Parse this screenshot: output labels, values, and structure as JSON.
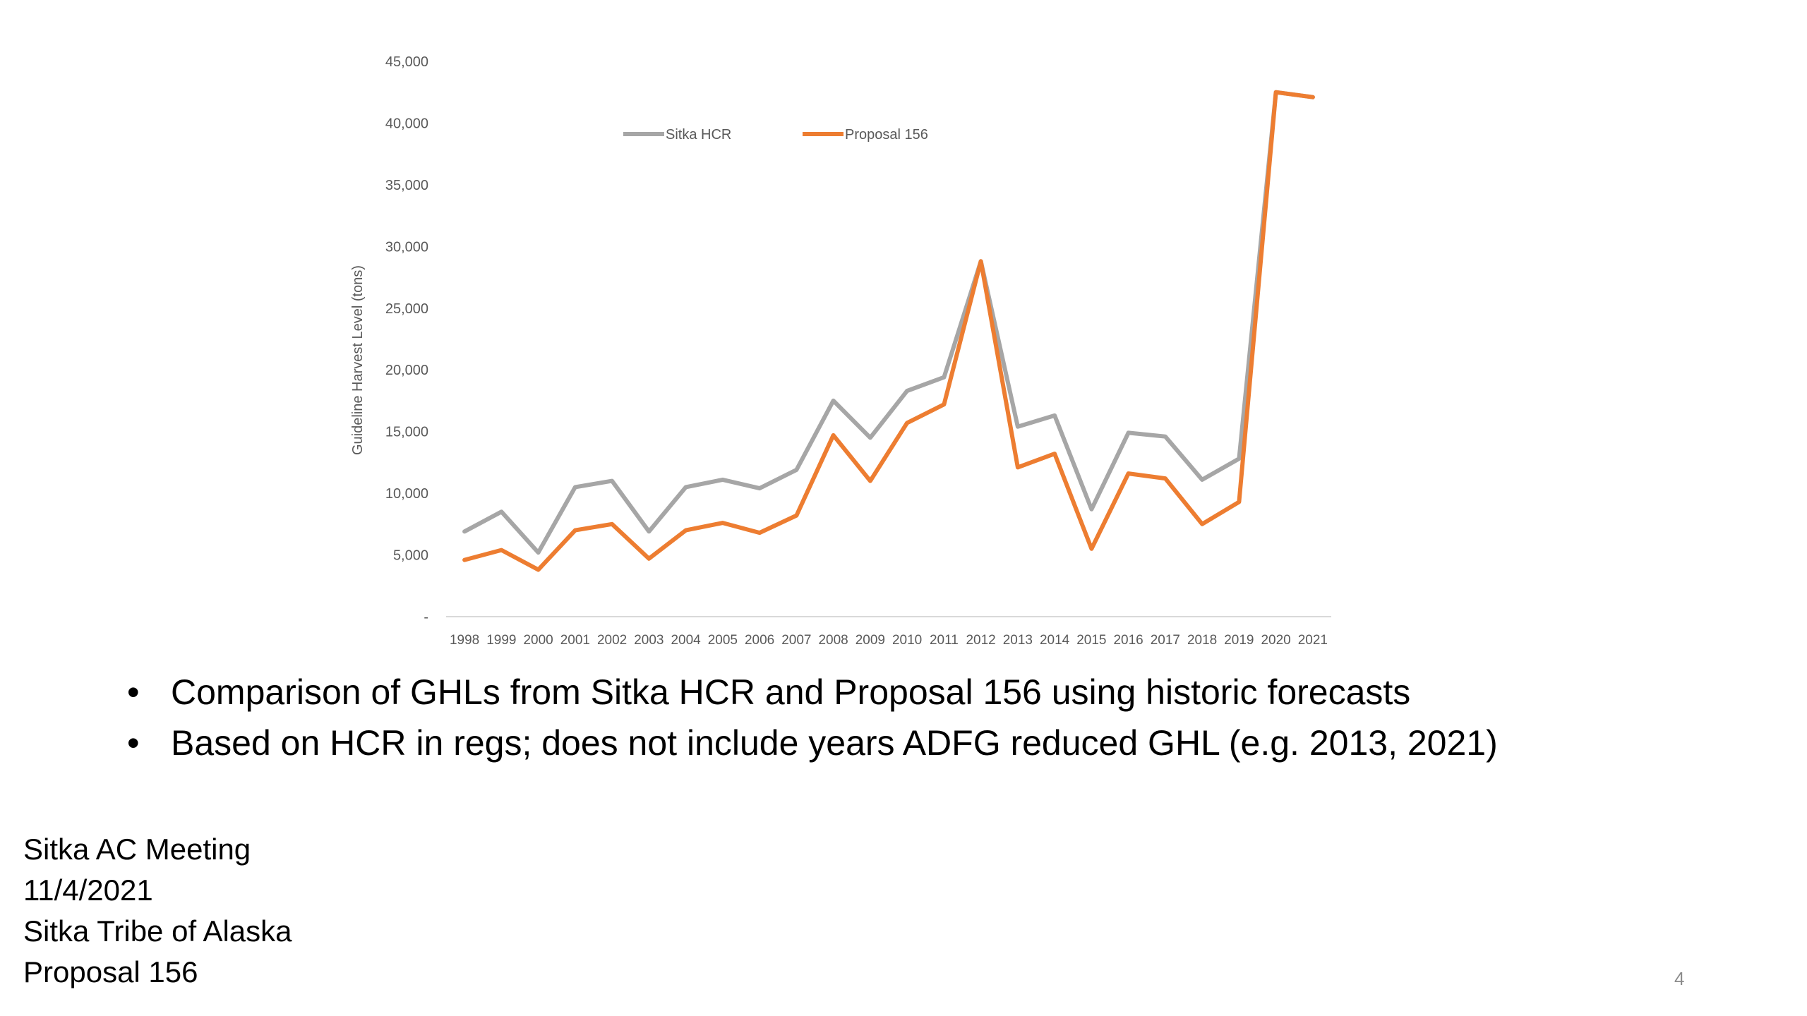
{
  "chart_data": {
    "type": "line",
    "title": "",
    "xlabel": "",
    "ylabel": "Guideline Harvest Level (tons)",
    "categories": [
      "1998",
      "1999",
      "2000",
      "2001",
      "2002",
      "2003",
      "2004",
      "2005",
      "2006",
      "2007",
      "2008",
      "2009",
      "2010",
      "2011",
      "2012",
      "2013",
      "2014",
      "2015",
      "2016",
      "2017",
      "2018",
      "2019",
      "2020",
      "2021"
    ],
    "series": [
      {
        "name": "Sitka HCR",
        "color": "#a6a6a6",
        "values": [
          6900,
          8500,
          5200,
          10500,
          11000,
          6900,
          10500,
          11100,
          10400,
          11900,
          17500,
          14500,
          18300,
          19400,
          28800,
          15400,
          16300,
          8700,
          14900,
          14600,
          11100,
          12800,
          42500,
          42100
        ]
      },
      {
        "name": "Proposal 156",
        "color": "#ed7d31",
        "values": [
          4600,
          5400,
          3800,
          7000,
          7500,
          4700,
          7000,
          7600,
          6800,
          8200,
          14700,
          11000,
          15700,
          17200,
          28800,
          12100,
          13200,
          5500,
          11600,
          11200,
          7500,
          9300,
          42500,
          42100
        ]
      }
    ],
    "yticks": [
      "-",
      "5,000",
      "10,000",
      "15,000",
      "20,000",
      "25,000",
      "30,000",
      "35,000",
      "40,000",
      "45,000"
    ],
    "ylim": [
      0,
      45000
    ],
    "grid": false,
    "legend_position": "top-left inside plot"
  },
  "slide": {
    "bullets": [
      "Comparison of GHLs from Sitka HCR and Proposal 156 using historic forecasts",
      "Based on HCR in regs; does not include years ADFG reduced GHL (e.g. 2013, 2021)"
    ],
    "bullet_glyph": "•",
    "footer_lines": [
      "Sitka AC Meeting",
      "11/4/2021",
      "Sitka Tribe of Alaska",
      "Proposal 156"
    ],
    "page_number": "4"
  }
}
